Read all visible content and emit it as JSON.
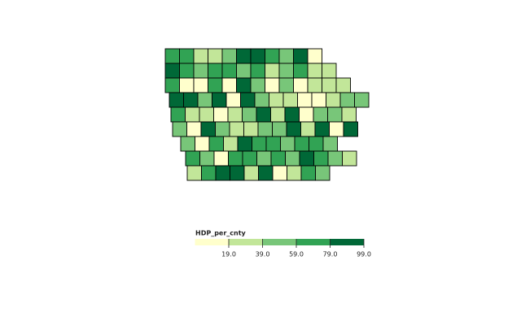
{
  "map": {
    "legend_title": "HDP_per_cnty",
    "colors": [
      "#ffffcc",
      "#c2e699",
      "#78c679",
      "#31a354",
      "#006837"
    ],
    "ticks": [
      {
        "value": 19,
        "label": "19.0"
      },
      {
        "value": 39,
        "label": "39.0"
      },
      {
        "value": 59,
        "label": "59.0"
      },
      {
        "value": 79,
        "label": "79.0"
      },
      {
        "value": 99,
        "label": "99.0"
      }
    ],
    "rows": [
      {
        "values": [
          70,
          70,
          30,
          30,
          50,
          90,
          90,
          70,
          50,
          90,
          10
        ]
      },
      {
        "values": [
          90,
          70,
          50,
          70,
          70,
          50,
          70,
          30,
          50,
          70,
          30,
          30
        ]
      },
      {
        "values": [
          70,
          10,
          10,
          70,
          10,
          90,
          50,
          10,
          50,
          10,
          30,
          30,
          30
        ]
      },
      {
        "values": [
          90,
          90,
          50,
          90,
          10,
          90,
          50,
          30,
          30,
          10,
          10,
          30,
          50,
          50
        ]
      },
      {
        "values": [
          70,
          30,
          30,
          10,
          30,
          50,
          90,
          30,
          90,
          10,
          50,
          50,
          30
        ]
      },
      {
        "values": [
          50,
          10,
          90,
          50,
          30,
          30,
          50,
          50,
          90,
          30,
          90,
          10,
          90
        ]
      },
      {
        "values": [
          50,
          10,
          70,
          30,
          90,
          70,
          70,
          50,
          70,
          70,
          50
        ]
      },
      {
        "values": [
          70,
          50,
          10,
          70,
          70,
          50,
          70,
          50,
          90,
          70,
          50,
          30
        ]
      },
      {
        "values": [
          30,
          70,
          90,
          90,
          30,
          90,
          10,
          30,
          70,
          50
        ]
      }
    ]
  }
}
